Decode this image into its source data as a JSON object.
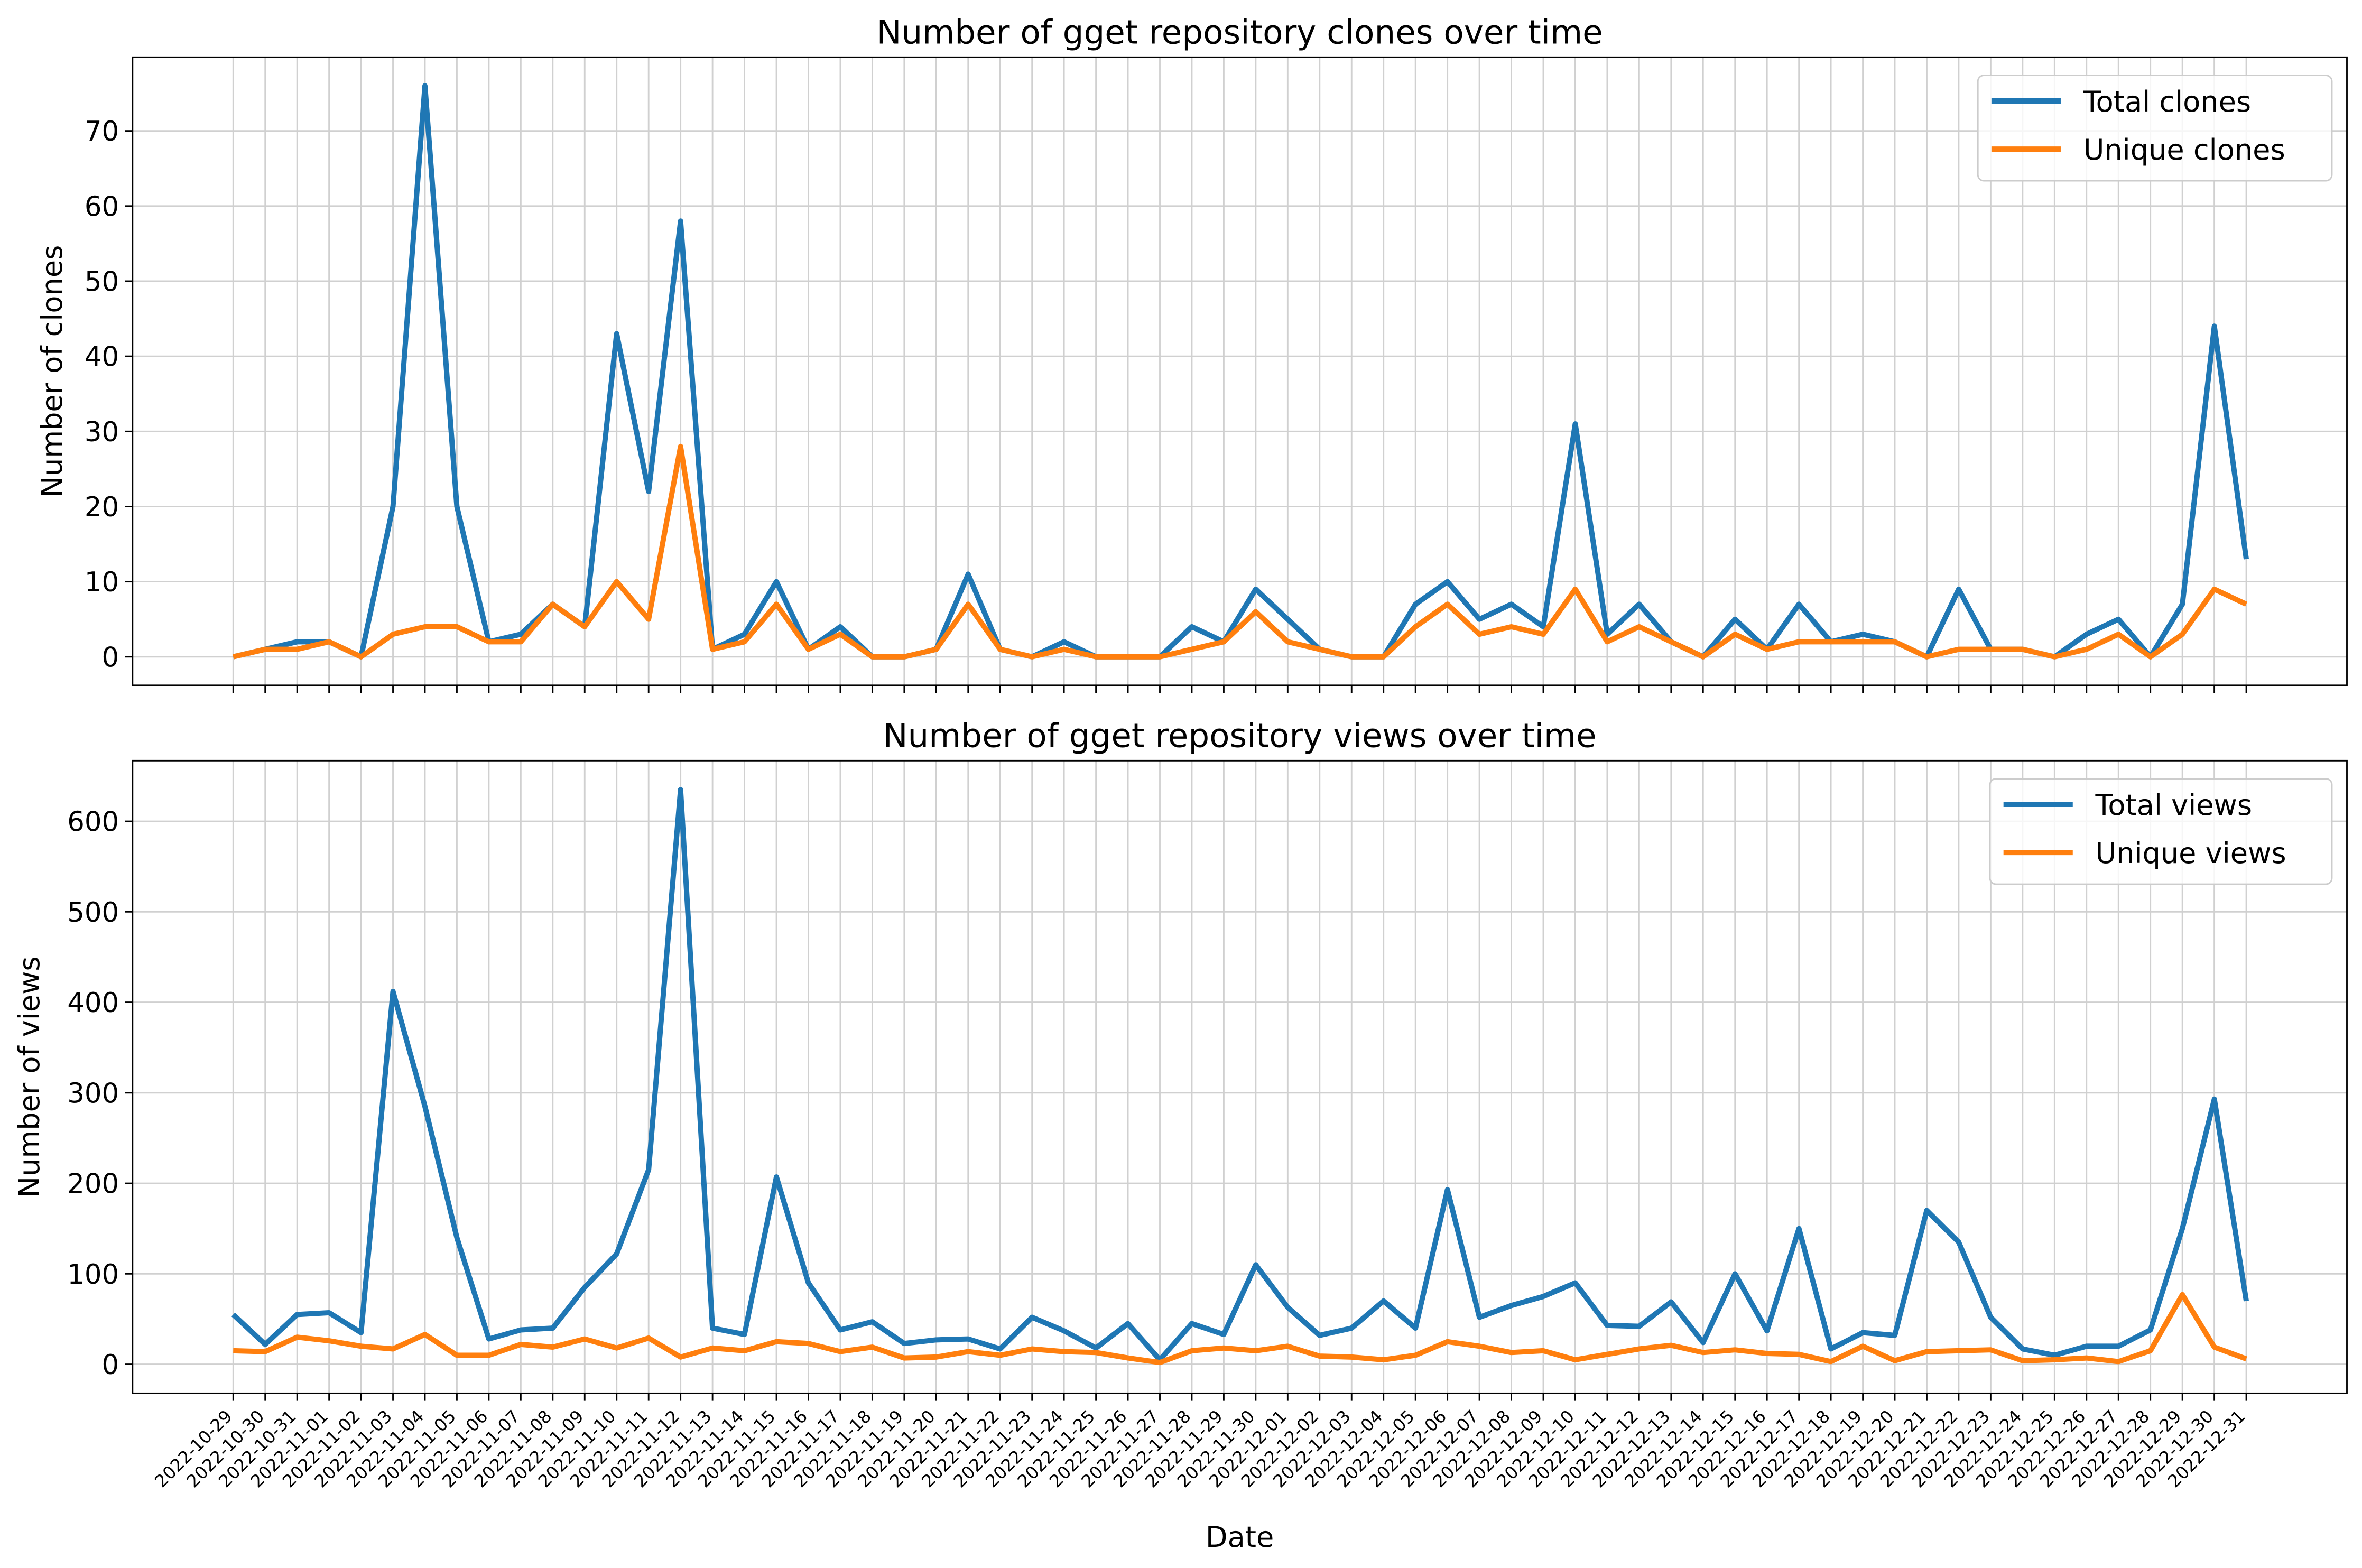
{
  "chart_data": [
    {
      "type": "line",
      "title": "Number of gget repository clones over time",
      "ylabel": "Number of clones",
      "ylim": [
        -3.8,
        79.8
      ],
      "yticks": [
        0,
        10,
        20,
        30,
        40,
        50,
        60,
        70
      ],
      "grid": true,
      "legend": "upper right",
      "series": [
        {
          "name": "Total clones",
          "color": "#1f77b4",
          "values": [
            0,
            1,
            2,
            2,
            0,
            20,
            76,
            20,
            2,
            3,
            7,
            4,
            43,
            22,
            58,
            1,
            3,
            10,
            1,
            4,
            0,
            0,
            1,
            11,
            1,
            0,
            2,
            0,
            0,
            0,
            4,
            2,
            9,
            5,
            1,
            0,
            0,
            7,
            10,
            5,
            7,
            4,
            31,
            3,
            7,
            2,
            0,
            5,
            1,
            7,
            2,
            3,
            2,
            0,
            9,
            1,
            1,
            0,
            3,
            5,
            0,
            7,
            44,
            13
          ]
        },
        {
          "name": "Unique clones",
          "color": "#ff7f0e",
          "values": [
            0,
            1,
            1,
            2,
            0,
            3,
            4,
            4,
            2,
            2,
            7,
            4,
            10,
            5,
            28,
            1,
            2,
            7,
            1,
            3,
            0,
            0,
            1,
            7,
            1,
            0,
            1,
            0,
            0,
            0,
            1,
            2,
            6,
            2,
            1,
            0,
            0,
            4,
            7,
            3,
            4,
            3,
            9,
            2,
            4,
            2,
            0,
            3,
            1,
            2,
            2,
            2,
            2,
            0,
            1,
            1,
            1,
            0,
            1,
            3,
            0,
            3,
            9,
            7
          ]
        }
      ]
    },
    {
      "type": "line",
      "title": "Number of gget repository views over time",
      "xlabel": "Date",
      "ylabel": "Number of views",
      "ylim": [
        -32,
        667
      ],
      "yticks": [
        0,
        100,
        200,
        300,
        400,
        500,
        600
      ],
      "grid": true,
      "legend": "upper right",
      "categories": [
        "2022-10-29",
        "2022-10-30",
        "2022-10-31",
        "2022-11-01",
        "2022-11-02",
        "2022-11-03",
        "2022-11-04",
        "2022-11-05",
        "2022-11-06",
        "2022-11-07",
        "2022-11-08",
        "2022-11-09",
        "2022-11-10",
        "2022-11-11",
        "2022-11-12",
        "2022-11-13",
        "2022-11-14",
        "2022-11-15",
        "2022-11-16",
        "2022-11-17",
        "2022-11-18",
        "2022-11-19",
        "2022-11-20",
        "2022-11-21",
        "2022-11-22",
        "2022-11-23",
        "2022-11-24",
        "2022-11-25",
        "2022-11-26",
        "2022-11-27",
        "2022-11-28",
        "2022-11-29",
        "2022-11-30",
        "2022-12-01",
        "2022-12-02",
        "2022-12-03",
        "2022-12-04",
        "2022-12-05",
        "2022-12-06",
        "2022-12-07",
        "2022-12-08",
        "2022-12-09",
        "2022-12-10",
        "2022-12-11",
        "2022-12-12",
        "2022-12-13",
        "2022-12-14",
        "2022-12-15",
        "2022-12-16",
        "2022-12-17",
        "2022-12-18",
        "2022-12-19",
        "2022-12-20",
        "2022-12-21",
        "2022-12-22",
        "2022-12-23",
        "2022-12-24",
        "2022-12-25",
        "2022-12-26",
        "2022-12-27",
        "2022-12-28",
        "2022-12-29",
        "2022-12-30",
        "2022-12-31"
      ],
      "series": [
        {
          "name": "Total views",
          "color": "#1f77b4",
          "values": [
            55,
            22,
            55,
            57,
            35,
            412,
            285,
            140,
            28,
            38,
            40,
            85,
            122,
            215,
            635,
            40,
            33,
            207,
            90,
            38,
            47,
            23,
            27,
            28,
            17,
            52,
            37,
            18,
            45,
            5,
            45,
            33,
            110,
            63,
            32,
            40,
            70,
            40,
            193,
            52,
            65,
            75,
            90,
            43,
            42,
            69,
            24,
            100,
            37,
            150,
            17,
            35,
            32,
            170,
            135,
            52,
            17,
            10,
            20,
            20,
            38,
            150,
            293,
            70
          ]
        },
        {
          "name": "Unique views",
          "color": "#ff7f0e",
          "values": [
            15,
            14,
            30,
            26,
            20,
            17,
            33,
            10,
            10,
            22,
            19,
            28,
            18,
            29,
            8,
            18,
            15,
            25,
            23,
            14,
            19,
            7,
            8,
            14,
            10,
            17,
            14,
            13,
            7,
            2,
            15,
            18,
            15,
            20,
            9,
            8,
            5,
            10,
            25,
            20,
            13,
            15,
            5,
            11,
            17,
            21,
            13,
            16,
            12,
            11,
            3,
            20,
            4,
            14,
            15,
            16,
            4,
            5,
            7,
            3,
            15,
            77,
            19,
            6
          ]
        }
      ]
    }
  ]
}
